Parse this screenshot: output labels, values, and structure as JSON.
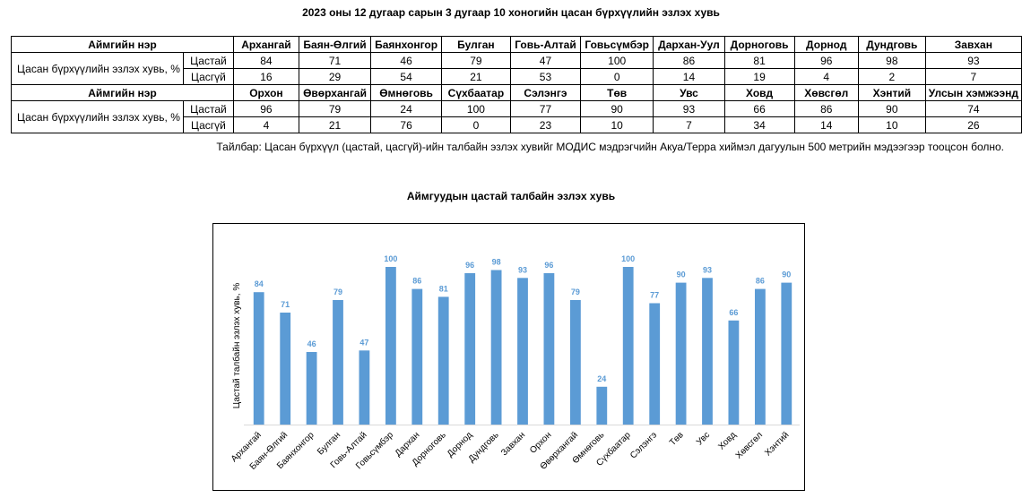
{
  "document": {
    "title": "2023 оны 12 дугаар сарын 3 дугаар 10 хоногийн цасан бүрхүүлийн эзлэх хувь",
    "note": "Тайлбар: Цасан бүрхүүл (цастай, цасгүй)-ийн талбайн эзлэх хувийг МОДИС мэдрэгчийн Акуа/Терра хиймэл дагуулын 500 метрийн мэдээгээр тооцсон болно."
  },
  "table": {
    "header_label": "Аймгийн нэр",
    "metric_label": "Цасан бүрхүүлийн эзлэх хувь, %",
    "snow_label": "Цастай",
    "nosnow_label": "Цасгүй",
    "block1": {
      "names": [
        "Архангай",
        "Баян-Өлгий",
        "Баянхонгор",
        "Булган",
        "Говь-Алтай",
        "Говьсүмбэр",
        "Дархан-Уул",
        "Дорноговь",
        "Дорнод",
        "Дундговь",
        "Завхан"
      ],
      "snow": [
        "84",
        "71",
        "46",
        "79",
        "47",
        "100",
        "86",
        "81",
        "96",
        "98",
        "93"
      ],
      "nosnow": [
        "16",
        "29",
        "54",
        "21",
        "53",
        "0",
        "14",
        "19",
        "4",
        "2",
        "7"
      ]
    },
    "block2": {
      "names": [
        "Орхон",
        "Өвөрхангай",
        "Өмнөговь",
        "Сүхбаатар",
        "Сэлэнгэ",
        "Төв",
        "Увс",
        "Ховд",
        "Хөвсгөл",
        "Хэнтий",
        "Улсын хэмжээнд"
      ],
      "snow": [
        "96",
        "79",
        "24",
        "100",
        "77",
        "90",
        "93",
        "66",
        "86",
        "90",
        "74"
      ],
      "nosnow": [
        "4",
        "21",
        "76",
        "0",
        "23",
        "10",
        "7",
        "34",
        "14",
        "10",
        "26"
      ]
    }
  },
  "chart_data": {
    "type": "bar",
    "title": "Аймгуудын цастай талбайн эзлэх хувь",
    "ylabel": "Цастай талбайн эзлэх хувь, %",
    "xlabel": "",
    "categories": [
      "Архангай",
      "Баян-Өлгий",
      "Баянхонгор",
      "Булган",
      "Говь-Алтай",
      "Говьсүмбэр",
      "Дархан",
      "Дорноговь",
      "Дорнод",
      "Дундговь",
      "Завхан",
      "Орхон",
      "Өвөрхангай",
      "Өмнөговь",
      "Сүхбаатар",
      "Сэлэнгэ",
      "Төв",
      "Увс",
      "Ховд",
      "Хөвсгөл",
      "Хэнтий"
    ],
    "values": [
      84,
      71,
      46,
      79,
      47,
      100,
      86,
      81,
      96,
      98,
      93,
      96,
      79,
      24,
      100,
      77,
      90,
      93,
      66,
      86,
      90
    ],
    "ylim": [
      0,
      100
    ],
    "grid": false,
    "legend": "none",
    "data_labels": true,
    "bar_color": "#5b9bd5",
    "label_color": "#5b9bd5"
  }
}
